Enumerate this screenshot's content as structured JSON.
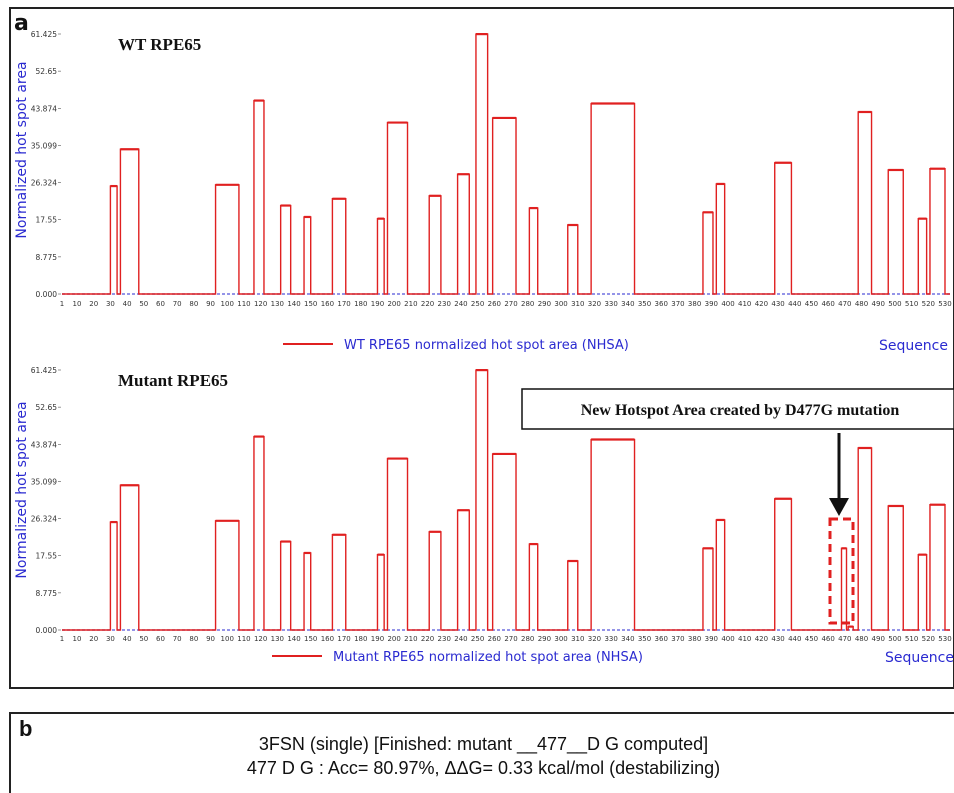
{
  "panel_a": {
    "label": "a",
    "callout": "New Hotspot Area created by D477G mutation"
  },
  "panel_b": {
    "label": "b",
    "line1": "3FSN (single) [Finished: mutant __477__D G computed]",
    "line2": "477 D G : Acc= 80.97%, ΔΔG= 0.33 kcal/mol (destabilizing)"
  },
  "colors": {
    "series": "#e02020",
    "baseline": "#7070e0",
    "axis_label": "#2a2ad0",
    "frame": "#222222"
  },
  "chart_data": [
    {
      "type": "line",
      "title": "WT RPE65",
      "ylabel": "Normalized hot spot area",
      "xlabel": "Sequence",
      "legend": "WT RPE65 normalized hot spot area (NHSA)",
      "legend_position": "bottom",
      "yticks": [
        "0.000",
        "8.775",
        "17.55",
        "26.324",
        "35.099",
        "43.874",
        "52.65",
        "61.425"
      ],
      "ylim": [
        0,
        61.425
      ],
      "xlim": [
        1,
        533
      ],
      "xticks": [
        "1",
        "10",
        "20",
        "30",
        "40",
        "50",
        "60",
        "70",
        "80",
        "90",
        "100",
        "110",
        "120",
        "130",
        "140",
        "150",
        "160",
        "170",
        "180",
        "190",
        "200",
        "210",
        "220",
        "230",
        "240",
        "250",
        "260",
        "270",
        "280",
        "290",
        "300",
        "310",
        "320",
        "330",
        "340",
        "350",
        "360",
        "370",
        "380",
        "390",
        "400",
        "410",
        "420",
        "430",
        "440",
        "450",
        "460",
        "470",
        "480",
        "490",
        "500",
        "510",
        "520",
        "530"
      ],
      "series": [
        {
          "values": [
            [
              30,
              34,
              25.5
            ],
            [
              36,
              47,
              34.2
            ],
            [
              93,
              107,
              25.8
            ],
            [
              116,
              122,
              45.7
            ],
            [
              132,
              138,
              20.9
            ],
            [
              146,
              150,
              18.2
            ],
            [
              163,
              171,
              22.5
            ],
            [
              190,
              194,
              17.8
            ],
            [
              196,
              208,
              40.5
            ],
            [
              221,
              228,
              23.2
            ],
            [
              238,
              245,
              28.3
            ],
            [
              249,
              256,
              61.4
            ],
            [
              259,
              273,
              41.6
            ],
            [
              281,
              286,
              20.3
            ],
            [
              304,
              310,
              16.3
            ],
            [
              318,
              344,
              45.0
            ],
            [
              385,
              391,
              19.3
            ],
            [
              393,
              398,
              26.0
            ],
            [
              428,
              438,
              31.0
            ],
            [
              478,
              486,
              43.0
            ],
            [
              496,
              505,
              29.3
            ],
            [
              514,
              519,
              17.8
            ],
            [
              521,
              530,
              29.6
            ]
          ]
        }
      ]
    },
    {
      "type": "line",
      "title": "Mutant RPE65",
      "ylabel": "Normalized hot spot area",
      "xlabel": "Sequence",
      "legend": "Mutant RPE65 normalized hot spot area (NHSA)",
      "legend_position": "bottom",
      "yticks": [
        "0.000",
        "8.775",
        "17.55",
        "26.324",
        "35.099",
        "43.874",
        "52.65",
        "61.425"
      ],
      "ylim": [
        0,
        61.425
      ],
      "xlim": [
        1,
        533
      ],
      "xticks": [
        "1",
        "10",
        "20",
        "30",
        "40",
        "50",
        "60",
        "70",
        "80",
        "90",
        "100",
        "110",
        "120",
        "130",
        "140",
        "150",
        "160",
        "170",
        "180",
        "190",
        "200",
        "210",
        "220",
        "230",
        "240",
        "250",
        "260",
        "270",
        "280",
        "290",
        "300",
        "310",
        "320",
        "330",
        "340",
        "350",
        "360",
        "370",
        "380",
        "390",
        "400",
        "410",
        "420",
        "430",
        "440",
        "450",
        "460",
        "470",
        "480",
        "490",
        "500",
        "510",
        "520",
        "530"
      ],
      "series": [
        {
          "values": [
            [
              30,
              34,
              25.5
            ],
            [
              36,
              47,
              34.2
            ],
            [
              93,
              107,
              25.8
            ],
            [
              116,
              122,
              45.7
            ],
            [
              132,
              138,
              20.9
            ],
            [
              146,
              150,
              18.2
            ],
            [
              163,
              171,
              22.5
            ],
            [
              190,
              194,
              17.8
            ],
            [
              196,
              208,
              40.5
            ],
            [
              221,
              228,
              23.2
            ],
            [
              238,
              245,
              28.3
            ],
            [
              249,
              256,
              61.4
            ],
            [
              259,
              273,
              41.6
            ],
            [
              281,
              286,
              20.3
            ],
            [
              304,
              310,
              16.3
            ],
            [
              318,
              344,
              45.0
            ],
            [
              385,
              391,
              19.3
            ],
            [
              393,
              398,
              26.0
            ],
            [
              428,
              438,
              31.0
            ],
            [
              468,
              471,
              19.3
            ],
            [
              472,
              475,
              0.8
            ],
            [
              478,
              486,
              43.0
            ],
            [
              496,
              505,
              29.3
            ],
            [
              514,
              519,
              17.8
            ],
            [
              521,
              530,
              29.6
            ]
          ]
        }
      ]
    }
  ]
}
